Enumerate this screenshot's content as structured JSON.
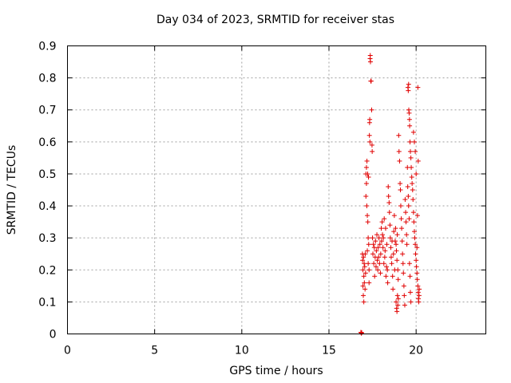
{
  "chart_data": {
    "type": "scatter",
    "title": "Day 034 of 2023, SRMTID for receiver stas",
    "xlabel": "GPS time / hours",
    "ylabel": "SRMTID / TECUs",
    "xlim": [
      0,
      24
    ],
    "ylim": [
      0,
      0.9
    ],
    "xticks": [
      0,
      5,
      10,
      15,
      20
    ],
    "yticks": [
      0,
      0.1,
      0.2,
      0.3,
      0.4,
      0.5,
      0.6,
      0.7,
      0.8,
      0.9
    ],
    "grid": true,
    "marker": "+",
    "color": "#e00000",
    "series": [
      {
        "name": "SRMTID",
        "points": [
          [
            16.83,
            0.005
          ],
          [
            16.86,
            0.002
          ],
          [
            16.88,
            0.004
          ],
          [
            16.92,
            0.25
          ],
          [
            16.93,
            0.23
          ],
          [
            16.95,
            0.2
          ],
          [
            16.95,
            0.15
          ],
          [
            16.97,
            0.12
          ],
          [
            16.98,
            0.24
          ],
          [
            17.0,
            0.18
          ],
          [
            17.0,
            0.1
          ],
          [
            17.02,
            0.22
          ],
          [
            17.03,
            0.16
          ],
          [
            17.05,
            0.21
          ],
          [
            17.07,
            0.14
          ],
          [
            17.08,
            0.25
          ],
          [
            17.1,
            0.19
          ],
          [
            17.12,
            0.5
          ],
          [
            17.12,
            0.43
          ],
          [
            17.15,
            0.52
          ],
          [
            17.15,
            0.47
          ],
          [
            17.17,
            0.4
          ],
          [
            17.18,
            0.54
          ],
          [
            17.2,
            0.37
          ],
          [
            17.2,
            0.26
          ],
          [
            17.22,
            0.5
          ],
          [
            17.23,
            0.35
          ],
          [
            17.25,
            0.3
          ],
          [
            17.25,
            0.22
          ],
          [
            17.27,
            0.49
          ],
          [
            17.28,
            0.28
          ],
          [
            17.3,
            0.2
          ],
          [
            17.3,
            0.16
          ],
          [
            17.32,
            0.62
          ],
          [
            17.33,
            0.66
          ],
          [
            17.34,
            0.67
          ],
          [
            17.35,
            0.6
          ],
          [
            17.36,
            0.86
          ],
          [
            17.37,
            0.87
          ],
          [
            17.38,
            0.85
          ],
          [
            17.4,
            0.79
          ],
          [
            17.42,
            0.79
          ],
          [
            17.45,
            0.7
          ],
          [
            17.47,
            0.59
          ],
          [
            17.48,
            0.57
          ],
          [
            17.5,
            0.3
          ],
          [
            17.52,
            0.25
          ],
          [
            17.55,
            0.28
          ],
          [
            17.57,
            0.22
          ],
          [
            17.6,
            0.27
          ],
          [
            17.62,
            0.18
          ],
          [
            17.65,
            0.24
          ],
          [
            17.67,
            0.29
          ],
          [
            17.7,
            0.21
          ],
          [
            17.72,
            0.26
          ],
          [
            17.75,
            0.31
          ],
          [
            17.77,
            0.23
          ],
          [
            17.8,
            0.2
          ],
          [
            17.82,
            0.27
          ],
          [
            17.85,
            0.24
          ],
          [
            17.87,
            0.3
          ],
          [
            17.9,
            0.22
          ],
          [
            17.92,
            0.28
          ],
          [
            17.95,
            0.19
          ],
          [
            17.97,
            0.25
          ],
          [
            18.0,
            0.33
          ],
          [
            18.02,
            0.29
          ],
          [
            18.05,
            0.35
          ],
          [
            18.07,
            0.31
          ],
          [
            18.1,
            0.27
          ],
          [
            18.12,
            0.3
          ],
          [
            18.15,
            0.22
          ],
          [
            18.17,
            0.36
          ],
          [
            18.2,
            0.24
          ],
          [
            18.22,
            0.26
          ],
          [
            18.25,
            0.33
          ],
          [
            18.27,
            0.18
          ],
          [
            18.3,
            0.21
          ],
          [
            18.32,
            0.28
          ],
          [
            18.35,
            0.2
          ],
          [
            18.37,
            0.16
          ],
          [
            18.4,
            0.46
          ],
          [
            18.42,
            0.43
          ],
          [
            18.45,
            0.41
          ],
          [
            18.47,
            0.38
          ],
          [
            18.5,
            0.34
          ],
          [
            18.52,
            0.3
          ],
          [
            18.55,
            0.27
          ],
          [
            18.57,
            0.24
          ],
          [
            18.6,
            0.22
          ],
          [
            18.62,
            0.29
          ],
          [
            18.65,
            0.18
          ],
          [
            18.67,
            0.14
          ],
          [
            18.7,
            0.25
          ],
          [
            18.72,
            0.32
          ],
          [
            18.75,
            0.37
          ],
          [
            18.77,
            0.2
          ],
          [
            18.8,
            0.29
          ],
          [
            18.82,
            0.33
          ],
          [
            18.85,
            0.28
          ],
          [
            18.87,
            0.26
          ],
          [
            18.9,
            0.23
          ],
          [
            18.92,
            0.31
          ],
          [
            18.95,
            0.2
          ],
          [
            18.97,
            0.17
          ],
          [
            18.85,
            0.1
          ],
          [
            18.88,
            0.08
          ],
          [
            18.9,
            0.07
          ],
          [
            18.93,
            0.12
          ],
          [
            18.95,
            0.09
          ],
          [
            18.98,
            0.11
          ],
          [
            19.0,
            0.62
          ],
          [
            19.02,
            0.57
          ],
          [
            19.05,
            0.54
          ],
          [
            19.08,
            0.47
          ],
          [
            19.1,
            0.45
          ],
          [
            19.12,
            0.4
          ],
          [
            19.15,
            0.36
          ],
          [
            19.17,
            0.33
          ],
          [
            19.2,
            0.29
          ],
          [
            19.22,
            0.25
          ],
          [
            19.25,
            0.22
          ],
          [
            19.27,
            0.19
          ],
          [
            19.3,
            0.15
          ],
          [
            19.32,
            0.12
          ],
          [
            19.35,
            0.09
          ],
          [
            19.37,
            0.42
          ],
          [
            19.4,
            0.38
          ],
          [
            19.42,
            0.35
          ],
          [
            19.45,
            0.31
          ],
          [
            19.47,
            0.28
          ],
          [
            19.5,
            0.52
          ],
          [
            19.52,
            0.46
          ],
          [
            19.55,
            0.43
          ],
          [
            19.57,
            0.4
          ],
          [
            19.6,
            0.36
          ],
          [
            19.62,
            0.22
          ],
          [
            19.65,
            0.18
          ],
          [
            19.67,
            0.13
          ],
          [
            19.7,
            0.1
          ],
          [
            19.53,
            0.77
          ],
          [
            19.55,
            0.76
          ],
          [
            19.57,
            0.78
          ],
          [
            19.58,
            0.7
          ],
          [
            19.6,
            0.69
          ],
          [
            19.62,
            0.67
          ],
          [
            19.63,
            0.65
          ],
          [
            19.65,
            0.6
          ],
          [
            19.67,
            0.57
          ],
          [
            19.7,
            0.55
          ],
          [
            19.72,
            0.52
          ],
          [
            19.75,
            0.49
          ],
          [
            19.77,
            0.47
          ],
          [
            19.8,
            0.45
          ],
          [
            19.82,
            0.42
          ],
          [
            19.85,
            0.38
          ],
          [
            19.87,
            0.35
          ],
          [
            19.9,
            0.32
          ],
          [
            19.92,
            0.3
          ],
          [
            19.95,
            0.28
          ],
          [
            19.97,
            0.25
          ],
          [
            20.0,
            0.23
          ],
          [
            20.02,
            0.21
          ],
          [
            20.05,
            0.19
          ],
          [
            20.07,
            0.17
          ],
          [
            20.1,
            0.15
          ],
          [
            20.12,
            0.13
          ],
          [
            20.13,
            0.11
          ],
          [
            20.15,
            0.1
          ],
          [
            20.17,
            0.12
          ],
          [
            20.18,
            0.14
          ],
          [
            20.1,
            0.77
          ],
          [
            20.12,
            0.54
          ],
          [
            20.08,
            0.37
          ],
          [
            20.05,
            0.27
          ],
          [
            19.85,
            0.63
          ],
          [
            19.9,
            0.6
          ],
          [
            19.95,
            0.57
          ],
          [
            20.0,
            0.5
          ]
        ]
      }
    ]
  }
}
